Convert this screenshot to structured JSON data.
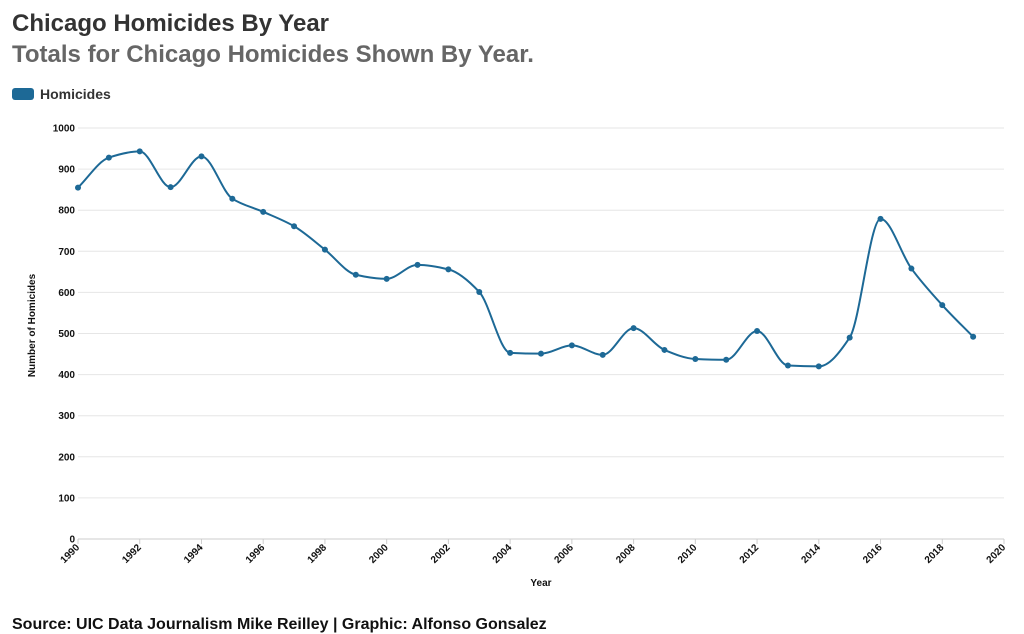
{
  "header": {
    "title": "Chicago Homicides By Year",
    "subtitle": "Totals for Chicago Homicides Shown By Year."
  },
  "footer": {
    "source": "Source: UIC Data Journalism Mike Reilley | Graphic: Alfonso Gonsalez"
  },
  "colors": {
    "series": "#1d6996",
    "grid": "#e6e6e6"
  },
  "chart_data": {
    "type": "line",
    "xlabel": "Year",
    "ylabel": "Number of Homicides",
    "xlim": [
      1990,
      2020
    ],
    "ylim": [
      0,
      1000
    ],
    "grid": true,
    "legend_position": "top-left",
    "x_ticks": [
      "1990",
      "1992",
      "1994",
      "1996",
      "1998",
      "2000",
      "2002",
      "2004",
      "2006",
      "2008",
      "2010",
      "2012",
      "2014",
      "2016",
      "2018",
      "2020"
    ],
    "y_ticks": [
      "0",
      "100",
      "200",
      "300",
      "400",
      "500",
      "600",
      "700",
      "800",
      "900",
      "1000"
    ],
    "series": [
      {
        "name": "Homicides",
        "x": [
          1990,
          1991,
          1992,
          1993,
          1994,
          1995,
          1996,
          1997,
          1998,
          1999,
          2000,
          2001,
          2002,
          2003,
          2004,
          2005,
          2006,
          2007,
          2008,
          2009,
          2010,
          2011,
          2012,
          2013,
          2014,
          2015,
          2016,
          2017,
          2018,
          2019
        ],
        "values": [
          855,
          928,
          943,
          856,
          931,
          828,
          796,
          761,
          704,
          643,
          633,
          667,
          656,
          601,
          453,
          451,
          471,
          448,
          513,
          460,
          438,
          436,
          506,
          422,
          420,
          490,
          779,
          658,
          569,
          492
        ]
      }
    ]
  }
}
